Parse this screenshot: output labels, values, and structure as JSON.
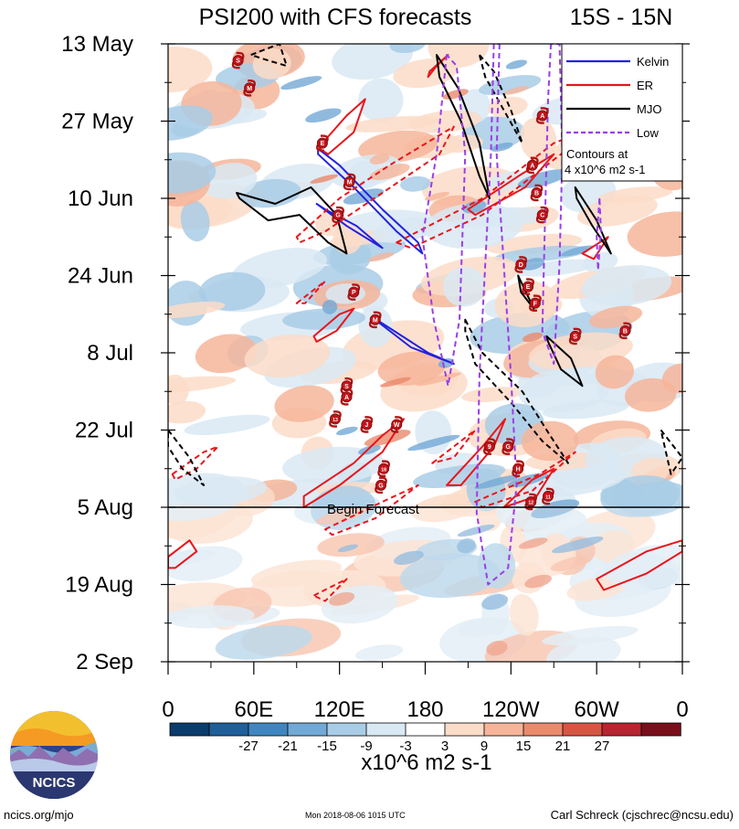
{
  "chart_data": {
    "type": "heatmap",
    "title": "PSI200 with CFS forecasts",
    "region": "15S - 15N",
    "y_axis": {
      "labels": [
        "13 May",
        "27 May",
        "10 Jun",
        "24 Jun",
        "8 Jul",
        "22 Jul",
        "5 Aug",
        "19 Aug",
        "2 Sep"
      ],
      "day_offsets": [
        0,
        14,
        28,
        42,
        56,
        70,
        84,
        98,
        112
      ]
    },
    "x_axis": {
      "labels": [
        "0",
        "60E",
        "120E",
        "180",
        "120W",
        "60W",
        "0"
      ],
      "lon_values": [
        0,
        60,
        120,
        180,
        240,
        300,
        360
      ]
    },
    "forecast_start": {
      "label": "Begin Forecast",
      "day_offset": 84,
      "lon": 115
    },
    "colorbar": {
      "ticks": [
        "-27",
        "-21",
        "-15",
        "-9",
        "-3",
        "3",
        "9",
        "15",
        "21",
        "27"
      ],
      "unit": "x10^6 m2 s-1",
      "colors": [
        "#0c3b6e",
        "#1f5f9a",
        "#3f86c0",
        "#73a9d6",
        "#a9cde6",
        "#d9e9f3",
        "#ffffff",
        "#fbdcc8",
        "#f6b59a",
        "#ea8a6d",
        "#d65644",
        "#b62630",
        "#7a0f1c"
      ]
    },
    "legend": {
      "placement": "top-right",
      "items": [
        {
          "label": "Kelvin",
          "color": "#2222dd",
          "dashed": false
        },
        {
          "label": "ER",
          "color": "#e8151b",
          "dashed": false
        },
        {
          "label": "MJO",
          "color": "#000000",
          "dashed": false
        },
        {
          "label": "Low",
          "color": "#9a3ee6",
          "dashed": true
        }
      ],
      "note_line1": "Contours at",
      "note_line2": "4 x10^6 m2 s-1"
    },
    "contours": [
      {
        "type": "Kelvin",
        "dashed": false,
        "path": [
          [
            105,
            20
          ],
          [
            130,
            26
          ],
          [
            160,
            34
          ],
          [
            178,
            38
          ],
          [
            175,
            36
          ],
          [
            150,
            30
          ],
          [
            120,
            22
          ],
          [
            105,
            19
          ]
        ]
      },
      {
        "type": "Kelvin",
        "dashed": false,
        "path": [
          [
            104,
            29
          ],
          [
            125,
            33
          ],
          [
            150,
            37
          ],
          [
            132,
            33
          ],
          [
            110,
            30
          ]
        ]
      },
      {
        "type": "Kelvin",
        "dashed": false,
        "path": [
          [
            145,
            50
          ],
          [
            170,
            55
          ],
          [
            200,
            58
          ],
          [
            182,
            56
          ],
          [
            158,
            52
          ],
          [
            146,
            50
          ]
        ]
      },
      {
        "type": "ER",
        "dashed": false,
        "path": [
          [
            108,
            18
          ],
          [
            125,
            13
          ],
          [
            138,
            10
          ],
          [
            130,
            16
          ],
          [
            112,
            20
          ],
          [
            106,
            19
          ]
        ]
      },
      {
        "type": "ER",
        "dashed": false,
        "path": [
          [
            183,
            5
          ],
          [
            196,
            2
          ],
          [
            188,
            4
          ],
          [
            182,
            6
          ]
        ]
      },
      {
        "type": "ER",
        "dashed": false,
        "path": [
          [
            210,
            30
          ],
          [
            245,
            24
          ],
          [
            270,
            20
          ],
          [
            250,
            26
          ],
          [
            215,
            31
          ]
        ]
      },
      {
        "type": "ER",
        "dashed": false,
        "path": [
          [
            290,
            38
          ],
          [
            308,
            35
          ],
          [
            298,
            39
          ]
        ]
      },
      {
        "type": "ER",
        "dashed": false,
        "path": [
          [
            102,
            53
          ],
          [
            120,
            49
          ],
          [
            130,
            48
          ],
          [
            118,
            52
          ],
          [
            104,
            54
          ]
        ]
      },
      {
        "type": "ER",
        "dashed": false,
        "path": [
          [
            95,
            82
          ],
          [
            130,
            76
          ],
          [
            150,
            71
          ],
          [
            165,
            68
          ],
          [
            150,
            74
          ],
          [
            120,
            80
          ],
          [
            95,
            84
          ]
        ]
      },
      {
        "type": "ER",
        "dashed": false,
        "path": [
          [
            195,
            80
          ],
          [
            220,
            73
          ],
          [
            236,
            68
          ],
          [
            228,
            73
          ],
          [
            205,
            80
          ]
        ]
      },
      {
        "type": "ER",
        "dashed": false,
        "path": [
          [
            235,
            84
          ],
          [
            255,
            79
          ],
          [
            270,
            77
          ],
          [
            258,
            82
          ]
        ]
      },
      {
        "type": "ER",
        "dashed": false,
        "path": [
          [
            0,
            93
          ],
          [
            15,
            90
          ],
          [
            20,
            92
          ],
          [
            5,
            95
          ],
          [
            0,
            95
          ]
        ]
      },
      {
        "type": "ER",
        "dashed": false,
        "path": [
          [
            300,
            97
          ],
          [
            335,
            92
          ],
          [
            360,
            90
          ],
          [
            360,
            92
          ],
          [
            335,
            96
          ],
          [
            305,
            99
          ]
        ]
      },
      {
        "type": "ER",
        "dashed": true,
        "path": [
          [
            90,
            35
          ],
          [
            120,
            28
          ],
          [
            155,
            22
          ],
          [
            200,
            15
          ],
          [
            190,
            20
          ],
          [
            150,
            27
          ],
          [
            110,
            34
          ],
          [
            92,
            36
          ]
        ]
      },
      {
        "type": "ER",
        "dashed": true,
        "path": [
          [
            160,
            36
          ],
          [
            220,
            28
          ],
          [
            270,
            18
          ],
          [
            300,
            15
          ],
          [
            265,
            22
          ],
          [
            220,
            31
          ],
          [
            170,
            37
          ]
        ]
      },
      {
        "type": "ER",
        "dashed": true,
        "path": [
          [
            90,
            47
          ],
          [
            110,
            43
          ],
          [
            96,
            47
          ]
        ]
      },
      {
        "type": "ER",
        "dashed": true,
        "path": [
          [
            3,
            78
          ],
          [
            25,
            74
          ],
          [
            35,
            73
          ],
          [
            20,
            77
          ],
          [
            5,
            79
          ]
        ]
      },
      {
        "type": "ER",
        "dashed": true,
        "path": [
          [
            110,
            88
          ],
          [
            150,
            83
          ],
          [
            175,
            80
          ],
          [
            145,
            86
          ],
          [
            115,
            89
          ]
        ]
      },
      {
        "type": "ER",
        "dashed": true,
        "path": [
          [
            185,
            76
          ],
          [
            215,
            70
          ],
          [
            200,
            75
          ]
        ]
      },
      {
        "type": "ER",
        "dashed": true,
        "path": [
          [
            215,
            83
          ],
          [
            260,
            78
          ],
          [
            285,
            74
          ],
          [
            255,
            81
          ],
          [
            220,
            84
          ]
        ]
      },
      {
        "type": "ER",
        "dashed": true,
        "path": [
          [
            102,
            100
          ],
          [
            125,
            97
          ],
          [
            110,
            101
          ]
        ]
      },
      {
        "type": "MJO",
        "dashed": false,
        "path": [
          [
            48,
            27
          ],
          [
            75,
            29
          ],
          [
            100,
            26
          ],
          [
            118,
            31
          ],
          [
            125,
            38
          ],
          [
            112,
            36
          ],
          [
            92,
            31
          ],
          [
            70,
            32
          ],
          [
            50,
            28
          ]
        ]
      },
      {
        "type": "MJO",
        "dashed": false,
        "path": [
          [
            188,
            2
          ],
          [
            203,
            8
          ],
          [
            218,
            18
          ],
          [
            225,
            28
          ],
          [
            218,
            24
          ],
          [
            205,
            14
          ],
          [
            190,
            6
          ]
        ]
      },
      {
        "type": "MJO",
        "dashed": false,
        "path": [
          [
            285,
            26
          ],
          [
            300,
            32
          ],
          [
            310,
            38
          ],
          [
            297,
            33
          ],
          [
            286,
            28
          ]
        ]
      },
      {
        "type": "MJO",
        "dashed": false,
        "path": [
          [
            245,
            42
          ],
          [
            256,
            48
          ],
          [
            247,
            45
          ]
        ]
      },
      {
        "type": "MJO",
        "dashed": false,
        "path": [
          [
            265,
            53
          ],
          [
            282,
            57
          ],
          [
            290,
            62
          ],
          [
            275,
            59
          ],
          [
            266,
            54
          ]
        ]
      },
      {
        "type": "MJO",
        "dashed": true,
        "path": [
          [
            58,
            2
          ],
          [
            78,
            0
          ],
          [
            83,
            4
          ],
          [
            70,
            3
          ]
        ]
      },
      {
        "type": "MJO",
        "dashed": true,
        "path": [
          [
            218,
            2
          ],
          [
            228,
            5
          ],
          [
            240,
            12
          ],
          [
            248,
            18
          ],
          [
            235,
            12
          ],
          [
            222,
            6
          ]
        ]
      },
      {
        "type": "MJO",
        "dashed": true,
        "path": [
          [
            208,
            50
          ],
          [
            220,
            56
          ],
          [
            248,
            63
          ],
          [
            265,
            70
          ],
          [
            280,
            76
          ],
          [
            262,
            72
          ],
          [
            240,
            65
          ],
          [
            215,
            58
          ],
          [
            208,
            52
          ]
        ]
      },
      {
        "type": "MJO",
        "dashed": true,
        "path": [
          [
            0,
            70
          ],
          [
            15,
            75
          ],
          [
            25,
            80
          ],
          [
            10,
            77
          ],
          [
            0,
            73
          ]
        ]
      },
      {
        "type": "MJO",
        "dashed": true,
        "path": [
          [
            345,
            70
          ],
          [
            360,
            75
          ],
          [
            352,
            78
          ]
        ]
      },
      {
        "type": "Low",
        "dashed": true,
        "path": [
          [
            195,
            2
          ],
          [
            188,
            20
          ],
          [
            178,
            35
          ],
          [
            186,
            50
          ],
          [
            196,
            62
          ],
          [
            204,
            50
          ],
          [
            206,
            35
          ],
          [
            208,
            20
          ],
          [
            202,
            4
          ]
        ]
      },
      {
        "type": "Low",
        "dashed": true,
        "path": [
          [
            232,
            0
          ],
          [
            230,
            20
          ],
          [
            235,
            40
          ],
          [
            240,
            60
          ],
          [
            244,
            80
          ],
          [
            238,
            95
          ],
          [
            224,
            98
          ],
          [
            216,
            85
          ],
          [
            218,
            60
          ],
          [
            222,
            40
          ],
          [
            226,
            20
          ],
          [
            228,
            0
          ]
        ]
      },
      {
        "type": "Low",
        "dashed": true,
        "path": [
          [
            268,
            0
          ],
          [
            266,
            10
          ],
          [
            264,
            30
          ],
          [
            262,
            52
          ],
          [
            270,
            58
          ],
          [
            274,
            40
          ],
          [
            276,
            20
          ],
          [
            274,
            0
          ]
        ]
      },
      {
        "type": "Low",
        "dashed": true,
        "path": [
          [
            302,
            28
          ],
          [
            300,
            35
          ],
          [
            301,
            41
          ],
          [
            303,
            34
          ]
        ]
      }
    ],
    "cyclone_markers": [
      {
        "label": "S",
        "lon": 49,
        "day": 3
      },
      {
        "label": "M",
        "lon": 57,
        "day": 8
      },
      {
        "label": "A",
        "lon": 262,
        "day": 13
      },
      {
        "label": "E",
        "lon": 108,
        "day": 18
      },
      {
        "label": "M",
        "lon": 127,
        "day": 25
      },
      {
        "label": "A",
        "lon": 255,
        "day": 22
      },
      {
        "label": "B",
        "lon": 258,
        "day": 27
      },
      {
        "label": "C",
        "lon": 262,
        "day": 31
      },
      {
        "label": "G",
        "lon": 119,
        "day": 31
      },
      {
        "label": "D",
        "lon": 247,
        "day": 40
      },
      {
        "label": "E",
        "lon": 252,
        "day": 44
      },
      {
        "label": "F",
        "lon": 257,
        "day": 47
      },
      {
        "label": "P",
        "lon": 130,
        "day": 45
      },
      {
        "label": "M",
        "lon": 145,
        "day": 50
      },
      {
        "label": "S",
        "lon": 285,
        "day": 53
      },
      {
        "label": "B",
        "lon": 320,
        "day": 52
      },
      {
        "label": "S",
        "lon": 125,
        "day": 62
      },
      {
        "label": "A",
        "lon": 125,
        "day": 64
      },
      {
        "label": "13",
        "lon": 117,
        "day": 68
      },
      {
        "label": "J",
        "lon": 139,
        "day": 69
      },
      {
        "label": "W",
        "lon": 160,
        "day": 69
      },
      {
        "label": "9",
        "lon": 225,
        "day": 73
      },
      {
        "label": "G",
        "lon": 238,
        "day": 73
      },
      {
        "label": "18",
        "lon": 151,
        "day": 77
      },
      {
        "label": "G",
        "lon": 149,
        "day": 80
      },
      {
        "label": "H",
        "lon": 245,
        "day": 77
      },
      {
        "label": "12",
        "lon": 254,
        "day": 83
      },
      {
        "label": "11",
        "lon": 266,
        "day": 82
      }
    ]
  },
  "footer": {
    "left": "ncics.org/mjo",
    "middle": "Mon 2018-08-06 1015 UTC",
    "right": "Carl Schreck (cjschrec@ncsu.edu)",
    "logo_text": "NCICS"
  }
}
